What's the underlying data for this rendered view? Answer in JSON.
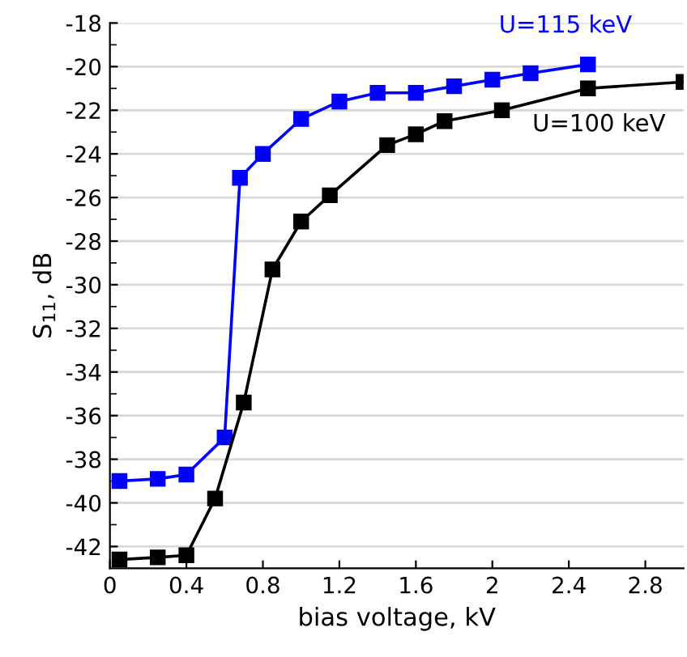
{
  "chart_data": {
    "type": "line",
    "xlabel": "bias voltage, kV",
    "ylabel": "S$_{11}$, dB",
    "xlim": [
      0,
      3.0
    ],
    "xticks": [
      0,
      0.4,
      0.8,
      1.2,
      1.6,
      2,
      2.4,
      2.8
    ],
    "ylim": [
      -43,
      -18
    ],
    "yticks": [
      -42,
      -40,
      -38,
      -36,
      -34,
      -32,
      -30,
      -28,
      -26,
      -24,
      -22,
      -20,
      -18
    ],
    "grid": "y",
    "marker": "square",
    "line_style": "solid",
    "legend": false,
    "series": [
      {
        "name": "U=115 keV",
        "color": "#0000ff",
        "x": [
          0.05,
          0.25,
          0.4,
          0.6,
          0.68,
          0.8,
          1.0,
          1.2,
          1.4,
          1.6,
          1.8,
          2.0,
          2.2,
          2.5
        ],
        "values": [
          -39.0,
          -38.9,
          -38.7,
          -37.0,
          -25.1,
          -24.0,
          -22.4,
          -21.6,
          -21.2,
          -21.2,
          -20.9,
          -20.6,
          -20.3,
          -19.9
        ]
      },
      {
        "name": "U=100 keV",
        "color": "#000000",
        "x": [
          0.05,
          0.25,
          0.4,
          0.55,
          0.7,
          0.85,
          1.0,
          1.15,
          1.45,
          1.6,
          1.75,
          2.05,
          2.5,
          3.0
        ],
        "values": [
          -42.6,
          -42.5,
          -42.4,
          -39.8,
          -35.4,
          -29.3,
          -27.1,
          -25.9,
          -23.6,
          -23.1,
          -22.5,
          -22.0,
          -21.0,
          -20.7
        ]
      }
    ]
  }
}
